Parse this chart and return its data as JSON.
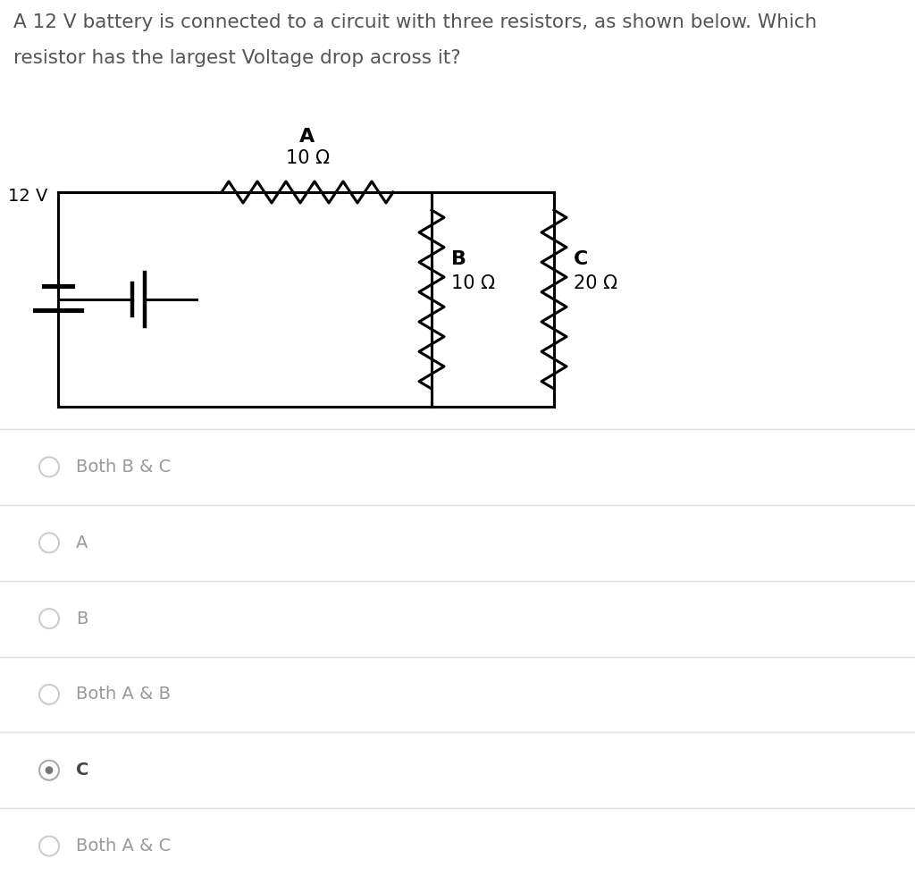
{
  "title_line1": "A 12 V battery is connected to a circuit with three resistors, as shown below. Which",
  "title_line2": "resistor has the largest Voltage drop across it?",
  "title_color": "#555555",
  "title_fontsize": 15.5,
  "bg_color": "#ffffff",
  "circuit_color": "#000000",
  "options": [
    {
      "label": "Both B & C",
      "selected": false
    },
    {
      "label": "A",
      "selected": false
    },
    {
      "label": "B",
      "selected": false
    },
    {
      "label": "Both A & B",
      "selected": false
    },
    {
      "label": "C",
      "selected": true
    },
    {
      "label": "Both A & C",
      "selected": false
    }
  ],
  "option_text_color": "#999999",
  "option_selected_color": "#444444",
  "radio_color": "#cccccc",
  "radio_selected_fill": "#888888",
  "divider_color": "#e0e0e0",
  "battery_label": "12 V",
  "resistor_A_label": "A",
  "resistor_A_value": "10 Ω",
  "resistor_B_label": "B",
  "resistor_B_value": "10 Ω",
  "resistor_C_label": "C",
  "resistor_C_value": "20 Ω"
}
